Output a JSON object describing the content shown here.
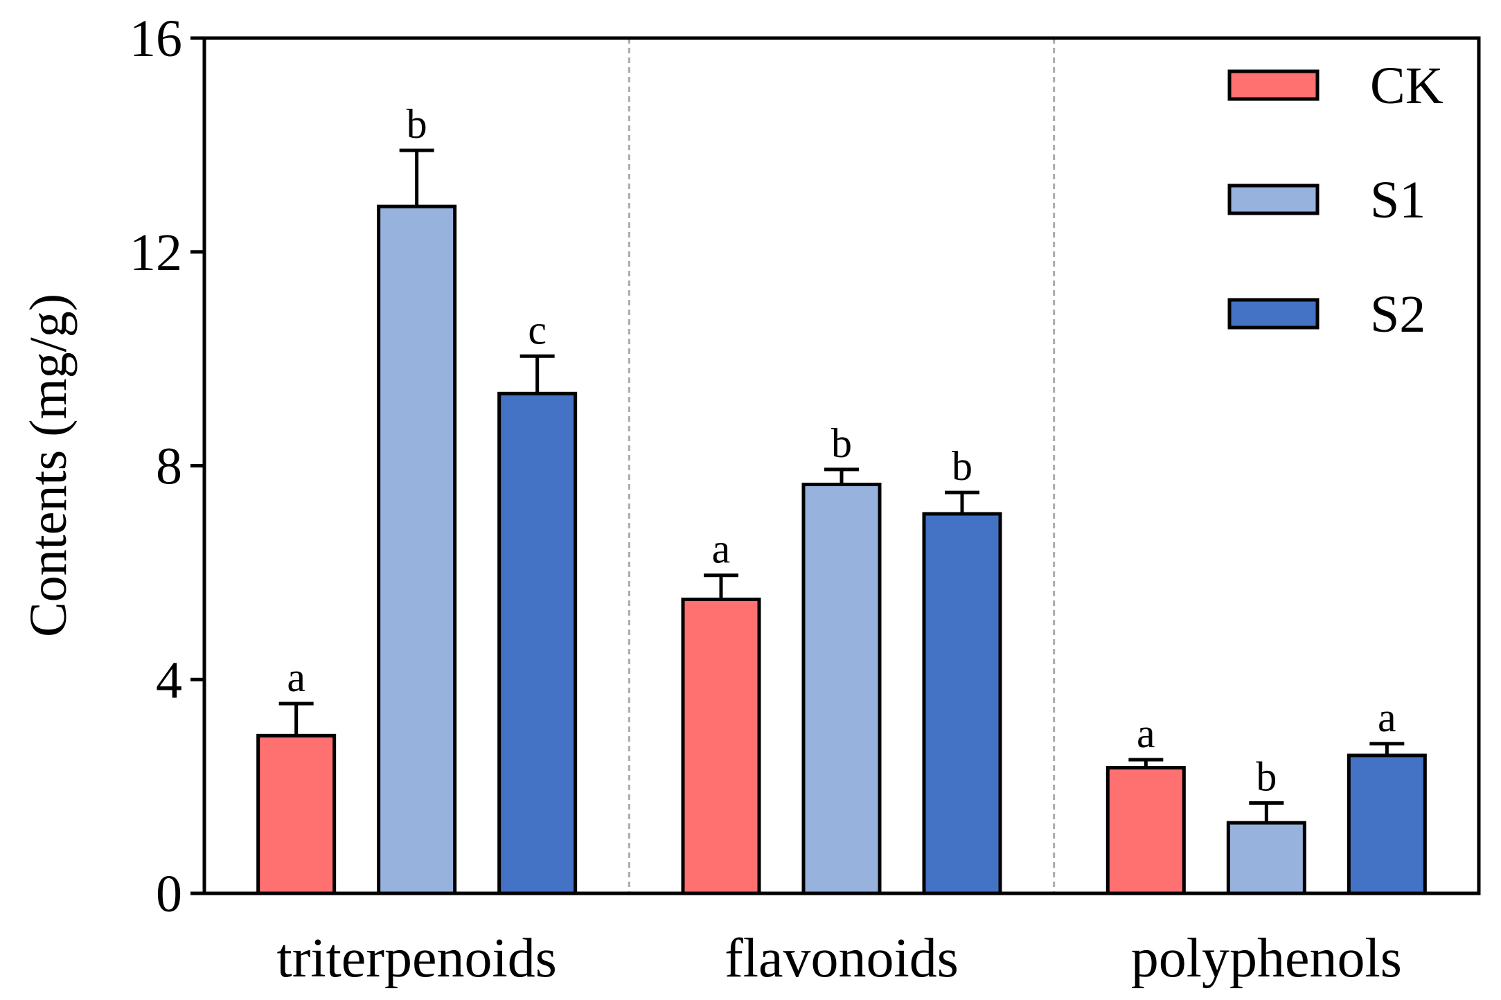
{
  "chart_data": {
    "type": "bar",
    "title": "",
    "xlabel": "",
    "ylabel": "Contents (mg/g)",
    "ylim": [
      0,
      16
    ],
    "yticks": [
      "0",
      "4",
      "8",
      "12",
      "16"
    ],
    "categories": [
      "triterpenoids",
      "flavonoids",
      "polyphenols"
    ],
    "legend_position": "top-right",
    "group_separators": "dashed",
    "series": [
      {
        "name": "CK",
        "color": "#FF7070",
        "values": [
          2.95,
          5.5,
          2.35
        ],
        "errors": [
          0.6,
          0.45,
          0.15
        ],
        "labels": [
          "a",
          "a",
          "a"
        ]
      },
      {
        "name": "S1",
        "color": "#98B2DE",
        "values": [
          12.85,
          7.65,
          1.32
        ],
        "errors": [
          1.05,
          0.28,
          0.37
        ],
        "labels": [
          "b",
          "b",
          "b"
        ]
      },
      {
        "name": "S2",
        "color": "#4472C4",
        "values": [
          9.35,
          7.1,
          2.58
        ],
        "errors": [
          0.7,
          0.4,
          0.22
        ],
        "labels": [
          "c",
          "b",
          "a"
        ]
      }
    ]
  }
}
